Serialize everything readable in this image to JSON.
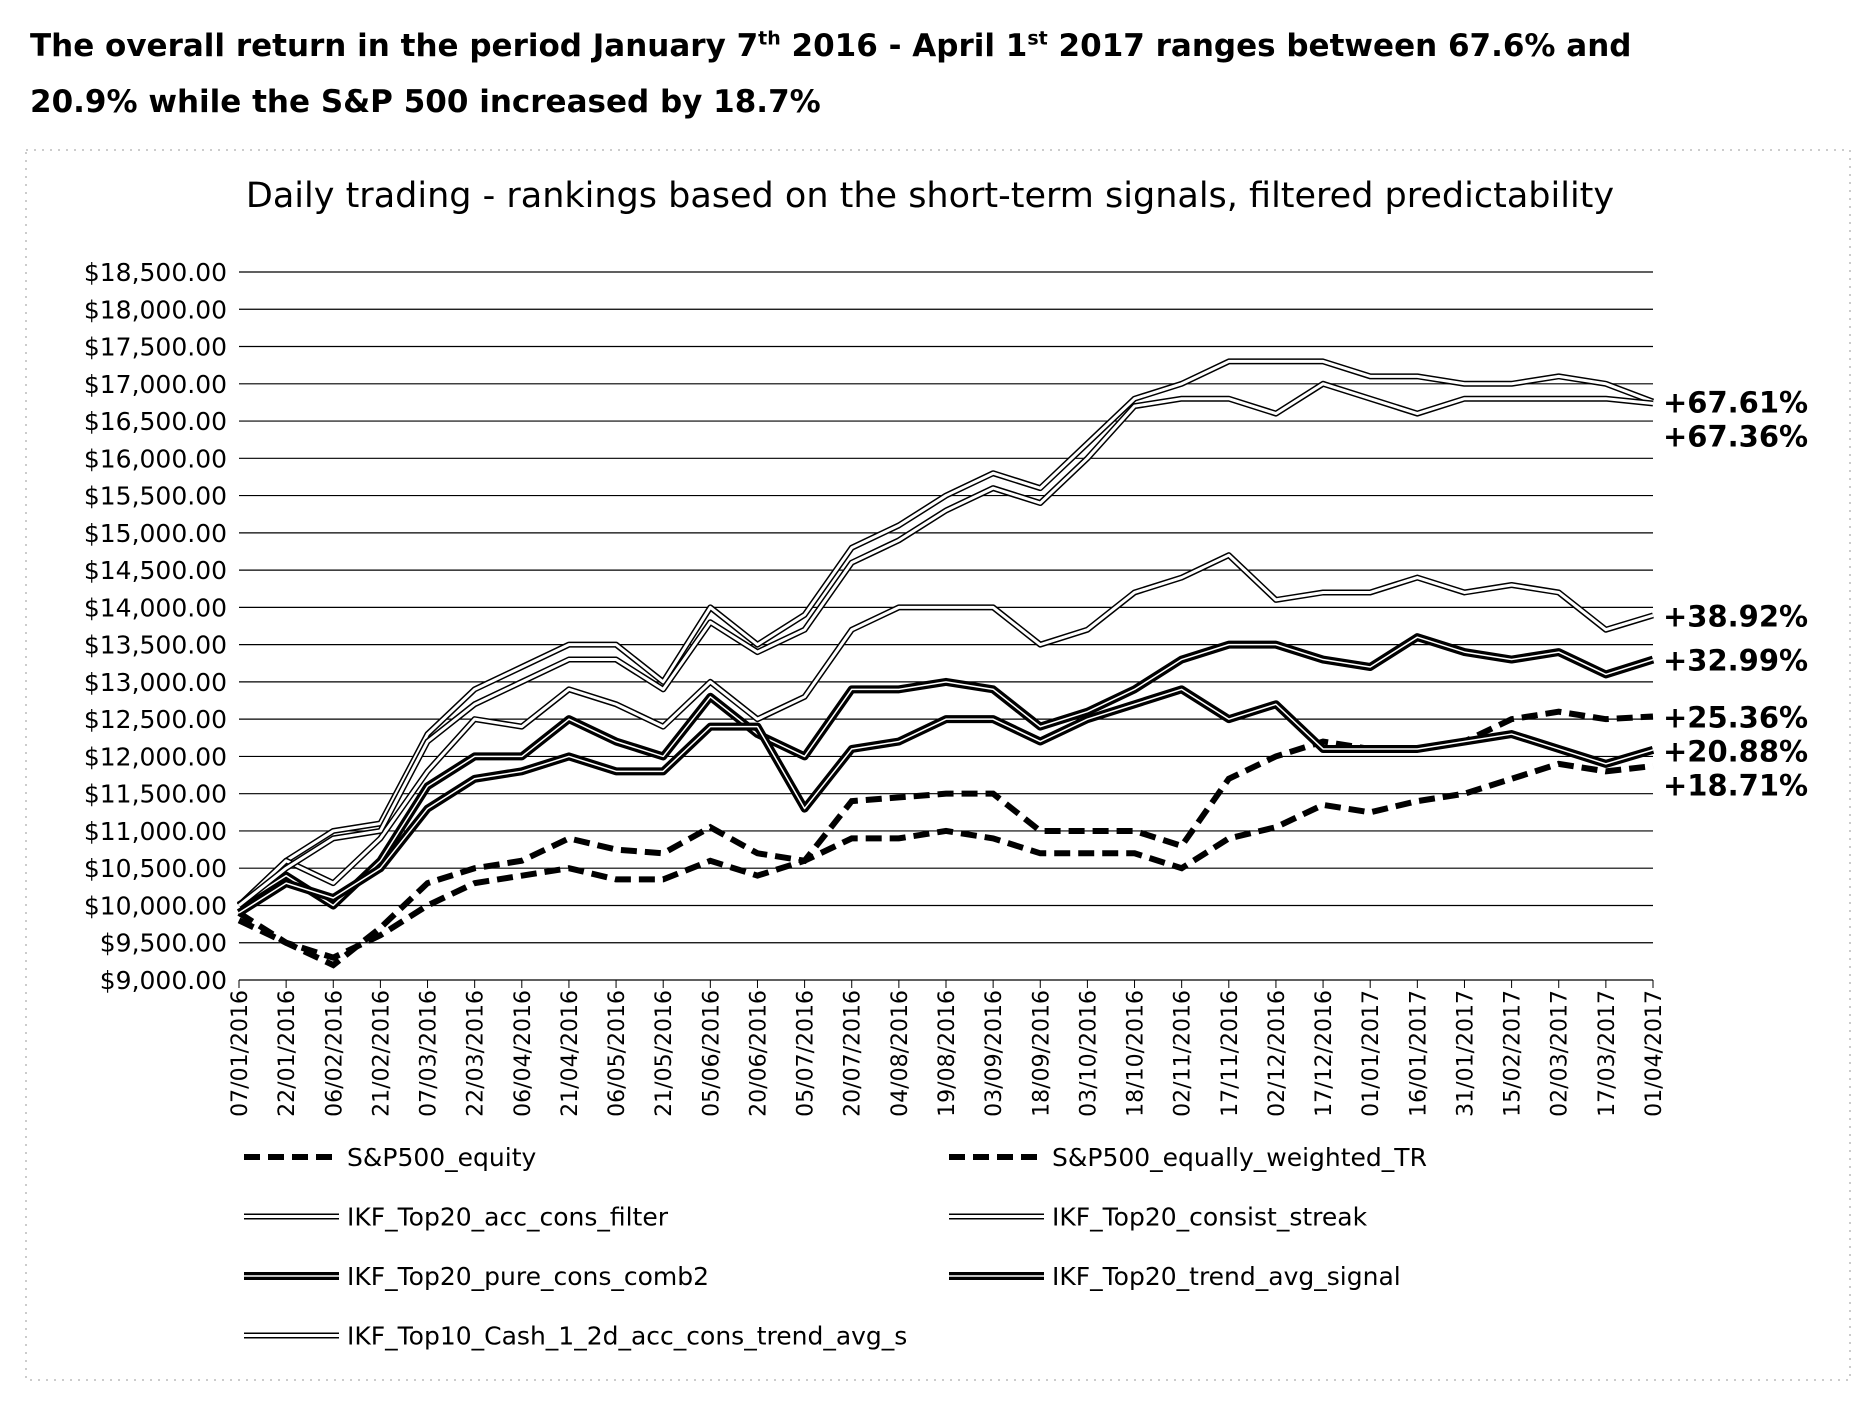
{
  "headline": [
    "The overall return in the period January 7",
    "th",
    " 2016 - April 1",
    "st",
    " 2017 ranges between 67.6% and 20.9% while the S&P 500 increased by 18.7%"
  ],
  "chart_data": {
    "type": "line",
    "title": "Daily trading - rankings based on the short-term signals, filtered predictability",
    "categories": [
      "07/01/2016",
      "22/01/2016",
      "06/02/2016",
      "21/02/2016",
      "07/03/2016",
      "22/03/2016",
      "06/04/2016",
      "21/04/2016",
      "06/05/2016",
      "21/05/2016",
      "05/06/2016",
      "20/06/2016",
      "05/07/2016",
      "20/07/2016",
      "04/08/2016",
      "19/08/2016",
      "03/09/2016",
      "18/09/2016",
      "03/10/2016",
      "18/10/2016",
      "02/11/2016",
      "17/11/2016",
      "02/12/2016",
      "17/12/2016",
      "01/01/2017",
      "16/01/2017",
      "31/01/2017",
      "15/02/2017",
      "02/03/2017",
      "17/03/2017",
      "01/04/2017"
    ],
    "ylim": [
      9000,
      18500
    ],
    "yticks": [
      {
        "value": 9000,
        "label": "$9,000.00"
      },
      {
        "value": 9500,
        "label": "$9,500.00"
      },
      {
        "value": 10000,
        "label": "$10,000.00"
      },
      {
        "value": 10500,
        "label": "$10,500.00"
      },
      {
        "value": 11000,
        "label": "$11,000.00"
      },
      {
        "value": 11500,
        "label": "$11,500.00"
      },
      {
        "value": 12000,
        "label": "$12,000.00"
      },
      {
        "value": 12500,
        "label": "$12,500.00"
      },
      {
        "value": 13000,
        "label": "$13,000.00"
      },
      {
        "value": 13500,
        "label": "$13,500.00"
      },
      {
        "value": 14000,
        "label": "$14,000.00"
      },
      {
        "value": 14500,
        "label": "$14,500.00"
      },
      {
        "value": 15000,
        "label": "$15,000.00"
      },
      {
        "value": 15500,
        "label": "$15,500.00"
      },
      {
        "value": 16000,
        "label": "$16,000.00"
      },
      {
        "value": 16500,
        "label": "$16,500.00"
      },
      {
        "value": 17000,
        "label": "$17,000.00"
      },
      {
        "value": 17500,
        "label": "$17,500.00"
      },
      {
        "value": 18000,
        "label": "$18,000.00"
      },
      {
        "value": 18500,
        "label": "$18,500.00"
      }
    ],
    "grid": true,
    "series": [
      {
        "name": "S&P500_equity",
        "color": "#000000",
        "style": "dashed",
        "end_label": "+18.71%",
        "values": [
          9900,
          9500,
          9300,
          9600,
          10000,
          10300,
          10400,
          10500,
          10350,
          10350,
          10600,
          10400,
          10600,
          10900,
          10900,
          11000,
          10900,
          10700,
          10700,
          10700,
          10500,
          10900,
          11050,
          11350,
          11250,
          11400,
          11500,
          11700,
          11900,
          11800,
          11871
        ]
      },
      {
        "name": "S&P500_equally_weighted_TR",
        "color": "#000000",
        "style": "dashed",
        "end_label": "+25.36%",
        "values": [
          9800,
          9500,
          9200,
          9700,
          10300,
          10500,
          10600,
          10900,
          10750,
          10700,
          11050,
          10700,
          10600,
          11400,
          11450,
          11500,
          11500,
          11000,
          11000,
          11000,
          10800,
          11700,
          12000,
          12200,
          12100,
          12100,
          12200,
          12500,
          12600,
          12500,
          12536
        ]
      },
      {
        "name": "IKF_Top20_acc_cons_filter",
        "color": "#ffffff",
        "style": "double",
        "end_label": "+67.61%",
        "values": [
          10000,
          10600,
          11000,
          11100,
          12300,
          12900,
          13200,
          13500,
          13500,
          13000,
          14000,
          13500,
          13900,
          14800,
          15100,
          15500,
          15800,
          15600,
          16200,
          16800,
          17000,
          17300,
          17300,
          17300,
          17100,
          17100,
          17000,
          17000,
          17100,
          17000,
          16761
        ]
      },
      {
        "name": "IKF_Top20_consist_streak",
        "color": "#ffffff",
        "style": "double",
        "end_label": "+38.92%",
        "values": [
          10000,
          10600,
          10300,
          10900,
          11800,
          12500,
          12400,
          12900,
          12700,
          12400,
          13000,
          12500,
          12800,
          13700,
          14000,
          14000,
          14000,
          13500,
          13700,
          14200,
          14400,
          14700,
          14100,
          14200,
          14200,
          14400,
          14200,
          14300,
          14200,
          13700,
          13892
        ]
      },
      {
        "name": "IKF_Top20_pure_cons_comb2",
        "color": "#000000",
        "style": "double",
        "end_label": "+32.99%",
        "values": [
          10000,
          10400,
          10000,
          10600,
          11600,
          12000,
          12000,
          12500,
          12200,
          12000,
          12800,
          12300,
          12000,
          12900,
          12900,
          13000,
          12900,
          12400,
          12600,
          12900,
          13300,
          13500,
          13500,
          13300,
          13200,
          13600,
          13400,
          13300,
          13400,
          13100,
          13299
        ]
      },
      {
        "name": "IKF_Top20_trend_avg_signal",
        "color": "#000000",
        "style": "double",
        "end_label": "+20.88%",
        "values": [
          9900,
          10300,
          10100,
          10500,
          11300,
          11700,
          11800,
          12000,
          11800,
          11800,
          12400,
          12400,
          11300,
          12100,
          12200,
          12500,
          12500,
          12200,
          12500,
          12700,
          12900,
          12500,
          12700,
          12100,
          12100,
          12100,
          12200,
          12300,
          12100,
          11900,
          12088
        ]
      },
      {
        "name": "IKF_Top10_Cash_1_2d_acc_cons_trend_avg_s",
        "color": "#ffffff",
        "style": "double",
        "end_label": "+67.36%",
        "values": [
          10000,
          10500,
          10900,
          11000,
          12200,
          12700,
          13000,
          13300,
          13300,
          12900,
          13800,
          13400,
          13700,
          14600,
          14900,
          15300,
          15600,
          15400,
          16000,
          16700,
          16800,
          16800,
          16600,
          17000,
          16800,
          16600,
          16800,
          16800,
          16800,
          16800,
          16736
        ]
      }
    ]
  }
}
